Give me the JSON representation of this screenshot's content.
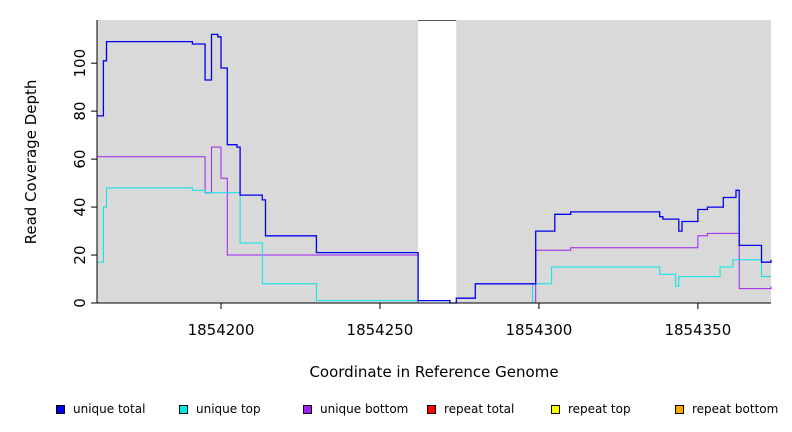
{
  "chart_data": {
    "type": "line",
    "title": "",
    "xlabel": "Coordinate in Reference Genome",
    "ylabel": "Read Coverage Depth",
    "xlim": [
      1854161,
      1854373
    ],
    "ylim": [
      0,
      118
    ],
    "xticks": [
      1854200,
      1854250,
      1854300,
      1854350
    ],
    "yticks": [
      0,
      20,
      40,
      60,
      80,
      100
    ],
    "xtick_labels": [
      "1854200",
      "1854250",
      "1854300",
      "1854350"
    ],
    "ytick_labels": [
      "0",
      "20",
      "40",
      "60",
      "80",
      "100"
    ],
    "gap_region": [
      1854262,
      1854274
    ],
    "series": [
      {
        "name": "unique total",
        "color": "#0000ee",
        "points": [
          [
            1854161,
            78
          ],
          [
            1854163,
            101
          ],
          [
            1854164,
            109
          ],
          [
            1854191,
            108
          ],
          [
            1854195,
            93
          ],
          [
            1854197,
            112
          ],
          [
            1854199,
            111
          ],
          [
            1854200,
            98
          ],
          [
            1854202,
            66
          ],
          [
            1854205,
            65
          ],
          [
            1854206,
            45
          ],
          [
            1854213,
            43
          ],
          [
            1854214,
            28
          ],
          [
            1854230,
            21
          ],
          [
            1854262,
            1
          ],
          [
            1854272,
            0
          ],
          [
            1854274,
            2
          ],
          [
            1854280,
            8
          ],
          [
            1854299,
            30
          ],
          [
            1854305,
            37
          ],
          [
            1854310,
            38
          ],
          [
            1854338,
            36
          ],
          [
            1854339,
            35
          ],
          [
            1854344,
            30
          ],
          [
            1854345,
            34
          ],
          [
            1854350,
            39
          ],
          [
            1854353,
            40
          ],
          [
            1854358,
            44
          ],
          [
            1854362,
            47
          ],
          [
            1854363,
            24
          ],
          [
            1854370,
            17
          ],
          [
            1854373,
            18
          ]
        ]
      },
      {
        "name": "unique top",
        "color": "#00e5e5",
        "points": [
          [
            1854161,
            17
          ],
          [
            1854163,
            40
          ],
          [
            1854164,
            48
          ],
          [
            1854191,
            47
          ],
          [
            1854195,
            46
          ],
          [
            1854200,
            46
          ],
          [
            1854206,
            25
          ],
          [
            1854213,
            8
          ],
          [
            1854230,
            1
          ],
          [
            1854262,
            1
          ],
          [
            1854272,
            0
          ],
          [
            1854298,
            8
          ],
          [
            1854304,
            15
          ],
          [
            1854338,
            12
          ],
          [
            1854343,
            7
          ],
          [
            1854344,
            11
          ],
          [
            1854357,
            15
          ],
          [
            1854361,
            18
          ],
          [
            1854370,
            11
          ],
          [
            1854373,
            11
          ]
        ]
      },
      {
        "name": "unique bottom",
        "color": "#a020f0",
        "points": [
          [
            1854161,
            61
          ],
          [
            1854195,
            46
          ],
          [
            1854197,
            65
          ],
          [
            1854200,
            52
          ],
          [
            1854202,
            20
          ],
          [
            1854262,
            0
          ],
          [
            1854299,
            22
          ],
          [
            1854310,
            23
          ],
          [
            1854350,
            28
          ],
          [
            1854353,
            29
          ],
          [
            1854363,
            6
          ],
          [
            1854373,
            7
          ]
        ]
      },
      {
        "name": "repeat total",
        "color": "#ff0000",
        "points": [
          [
            1854161,
            0
          ],
          [
            1854373,
            0
          ]
        ]
      },
      {
        "name": "repeat top",
        "color": "#ffff00",
        "points": [
          [
            1854161,
            0
          ],
          [
            1854373,
            0
          ]
        ]
      },
      {
        "name": "repeat bottom",
        "color": "#ffa500",
        "points": [
          [
            1854161,
            0
          ],
          [
            1854373,
            0
          ]
        ]
      }
    ],
    "legend": [
      {
        "label": "unique total",
        "color": "#0000ee"
      },
      {
        "label": "unique top",
        "color": "#00e5e5"
      },
      {
        "label": "unique bottom",
        "color": "#a020f0"
      },
      {
        "label": "repeat total",
        "color": "#ff0000"
      },
      {
        "label": "repeat top",
        "color": "#ffff00"
      },
      {
        "label": "repeat bottom",
        "color": "#ffa500"
      }
    ]
  }
}
